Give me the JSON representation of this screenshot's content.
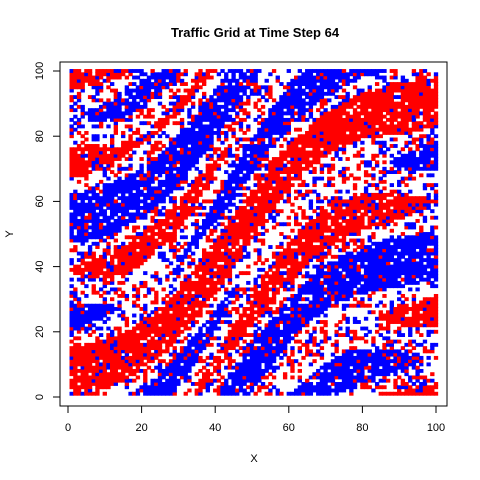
{
  "chart_data": {
    "type": "heatmap",
    "title": "Traffic Grid at Time Step 64",
    "xlabel": "X",
    "ylabel": "Y",
    "xlim": [
      0,
      100
    ],
    "ylim": [
      0,
      100
    ],
    "grid_size": 100,
    "xticks": [
      0,
      20,
      40,
      60,
      80,
      100
    ],
    "yticks": [
      0,
      20,
      40,
      60,
      80,
      100
    ],
    "grid": false,
    "legend": "none",
    "categories": [
      "empty",
      "red car",
      "blue car"
    ],
    "colors": {
      "empty": "#ffffff",
      "red": "#ff0000",
      "blue": "#0000ff"
    },
    "density": {
      "red": 0.35,
      "blue": 0.35
    },
    "pattern": "diagonal jam bands running from lower-left to upper-right"
  },
  "colors": {
    "background": "#ffffff",
    "axis": "#000000"
  }
}
